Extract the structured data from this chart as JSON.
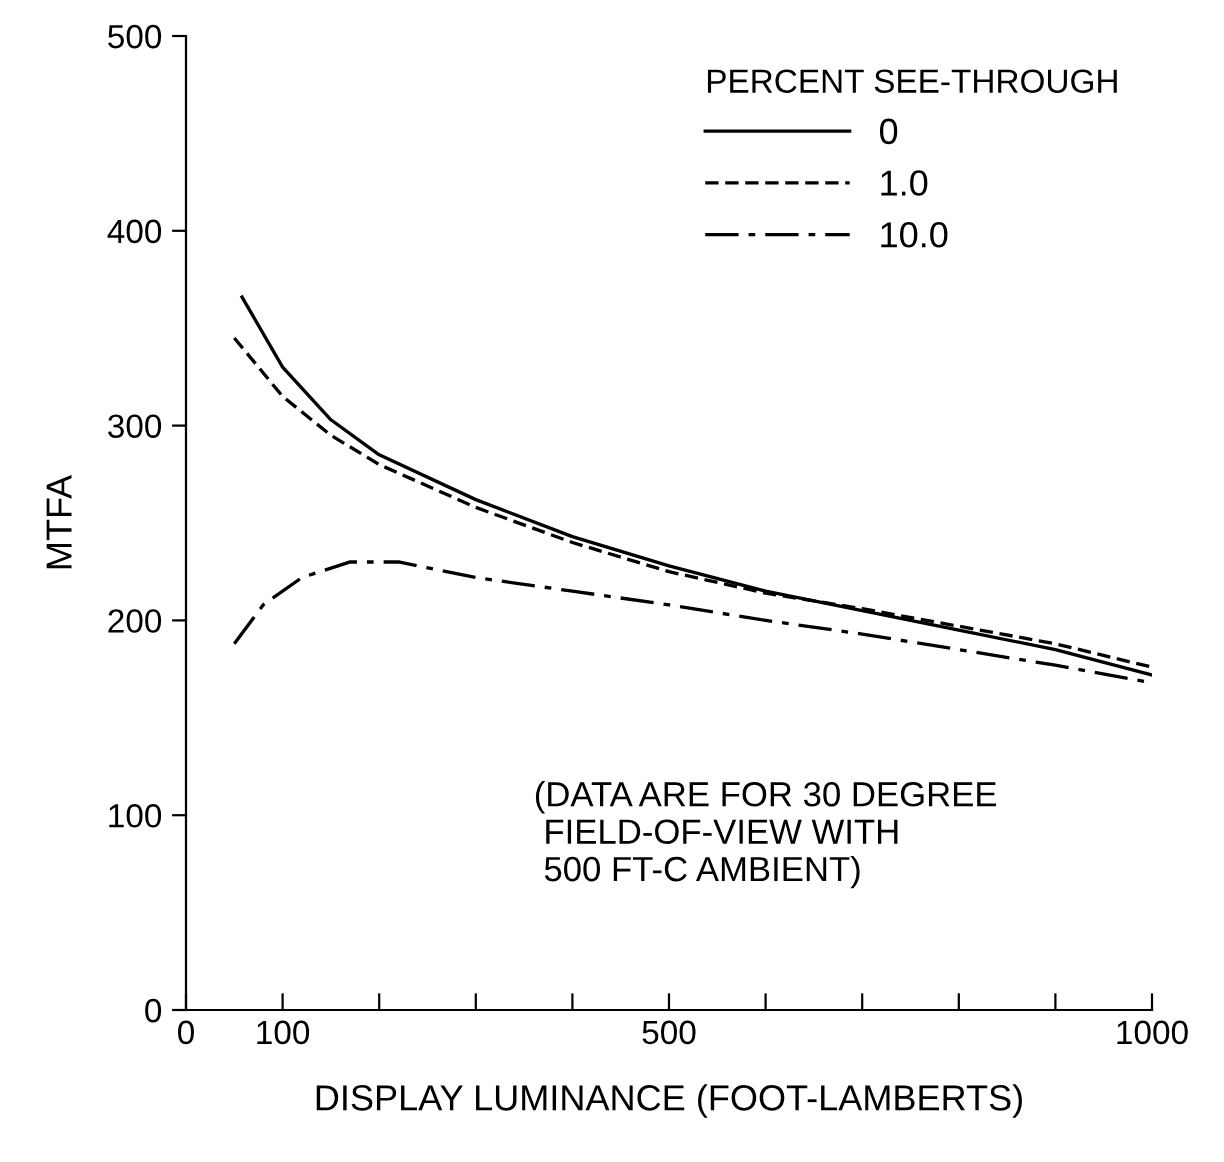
{
  "chart_data": {
    "type": "line",
    "xlabel": "DISPLAY LUMINANCE (FOOT-LAMBERTS)",
    "ylabel": "MTFA",
    "legend_title": "PERCENT SEE-THROUGH",
    "legend": "top right",
    "grid": false,
    "xlim": [
      0,
      1000
    ],
    "ylim": [
      0,
      500
    ],
    "xticks": [
      0,
      100,
      {
        "value": 200,
        "label": null
      },
      {
        "value": 300,
        "label": null
      },
      {
        "value": 400,
        "label": null
      },
      500,
      {
        "value": 600,
        "label": null
      },
      {
        "value": 700,
        "label": null
      },
      {
        "value": 800,
        "label": null
      },
      {
        "value": 900,
        "label": null
      },
      1000
    ],
    "yticks": [
      0,
      100,
      200,
      300,
      400,
      500
    ],
    "series": [
      {
        "name": "0",
        "color": "#000000",
        "line_style": "solid",
        "x": [
          58,
          100,
          150,
          200,
          300,
          400,
          500,
          600,
          700,
          800,
          900,
          1000
        ],
        "values": [
          366,
          330,
          303,
          285,
          262,
          243,
          228,
          215,
          205,
          195,
          185,
          172
        ]
      },
      {
        "name": "1.0",
        "color": "#000000",
        "line_style": "dashed",
        "x": [
          50,
          100,
          150,
          200,
          300,
          400,
          500,
          600,
          700,
          800,
          900,
          1000
        ],
        "values": [
          345,
          315,
          295,
          280,
          258,
          240,
          225,
          214,
          206,
          197,
          188,
          176
        ]
      },
      {
        "name": "10.0",
        "color": "#000000",
        "line_style": "dashdot",
        "x": [
          50,
          80,
          120,
          170,
          220,
          300,
          400,
          500,
          600,
          700,
          800,
          900,
          1000
        ],
        "values": [
          188,
          208,
          222,
          230,
          230,
          222,
          215,
          208,
          200,
          193,
          185,
          177,
          168
        ]
      }
    ],
    "annotations": [
      "(DATA ARE FOR 30 DEGREE\n FIELD-OF-VIEW WITH\n 500 FT-C AMBIENT)"
    ]
  }
}
